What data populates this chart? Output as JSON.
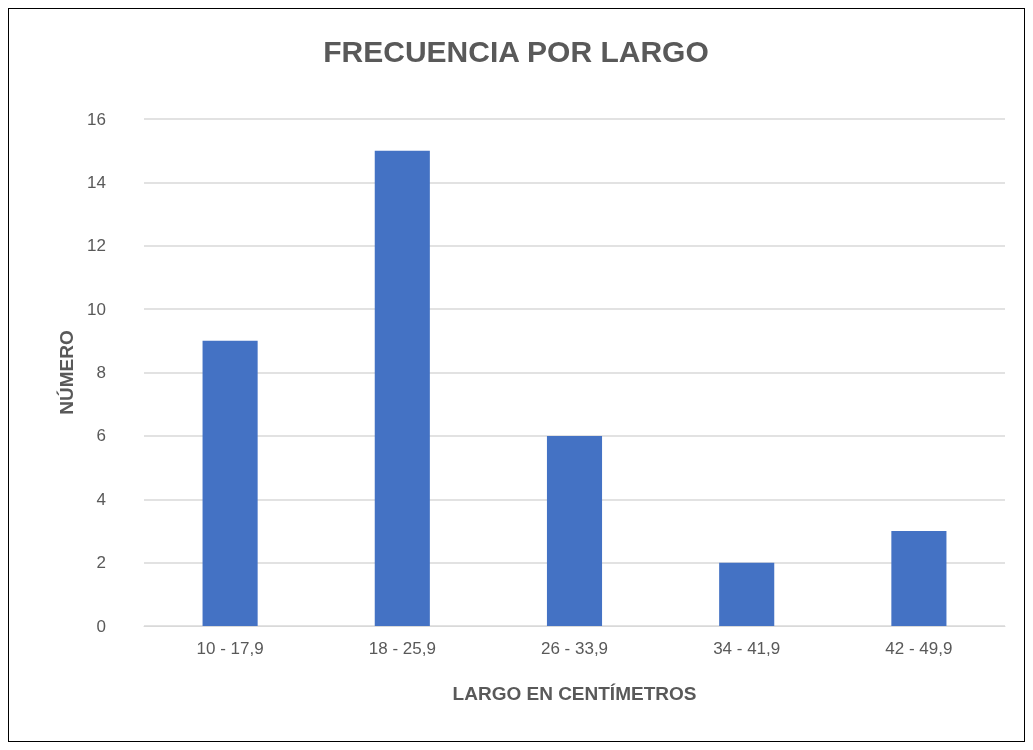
{
  "chart_data": {
    "type": "bar",
    "title": "FRECUENCIA POR LARGO",
    "xlabel": "LARGO EN CENTÍMETROS",
    "ylabel": "NÚMERO",
    "categories": [
      "10 - 17,9",
      "18 - 25,9",
      "26 - 33,9",
      "34 - 41,9",
      "42 - 49,9"
    ],
    "values": [
      9,
      15,
      6,
      2,
      3
    ],
    "color": "#4472c4",
    "ylim": [
      0,
      16
    ],
    "yticks": [
      0,
      2,
      4,
      6,
      8,
      10,
      12,
      14,
      16
    ],
    "grid": "y"
  }
}
